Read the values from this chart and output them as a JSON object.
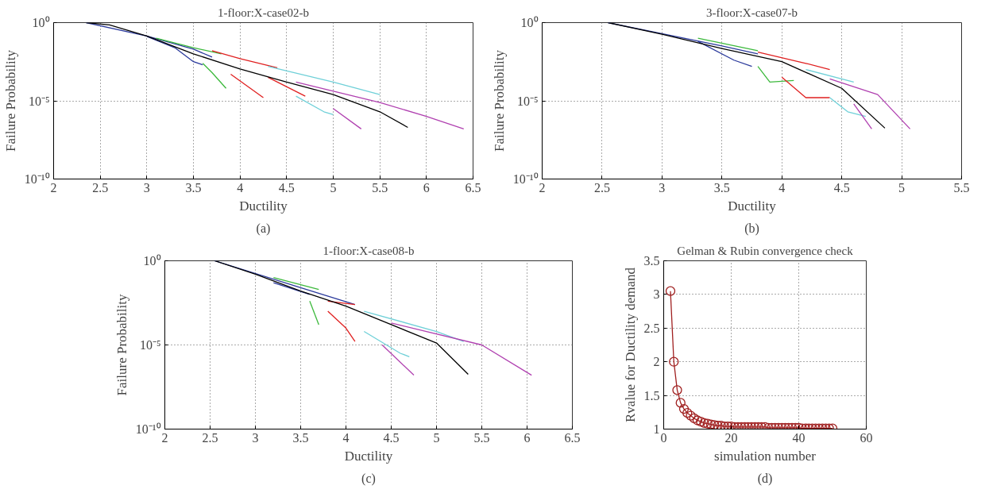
{
  "chart_data": [
    {
      "type": "line",
      "title": "1-floor:X-case02-b",
      "xlabel": "Ductility",
      "ylabel": "Failure Probability",
      "annotations": [
        "(a)"
      ],
      "log": "y",
      "grid": true,
      "xlim": [
        2,
        6.5
      ],
      "xticks": [
        2,
        2.5,
        3,
        3.5,
        4,
        4.5,
        5,
        5.5,
        6,
        6.5
      ],
      "ylim": [
        1e-10,
        1
      ],
      "yticks": [
        {
          "value": 1e-10,
          "label": "10⁻¹⁰"
        },
        {
          "value": 1e-05,
          "label": "10⁻⁵"
        },
        {
          "value": 1,
          "label": "10⁰"
        }
      ],
      "series": [
        {
          "color": "#2b3a9c",
          "x": [
            2.35,
            3.0,
            3.5,
            3.7
          ],
          "values": [
            1,
            0.14,
            0.02,
            0.0063
          ]
        },
        {
          "color": "#2b3a9c",
          "x": [
            3.0,
            3.3,
            3.5,
            3.6
          ],
          "values": [
            0.13,
            0.025,
            0.0032,
            0.002
          ]
        },
        {
          "color": "#3cb93c",
          "x": [
            3.1,
            3.5,
            3.8
          ],
          "values": [
            0.1,
            0.025,
            0.01
          ]
        },
        {
          "color": "#3cb93c",
          "x": [
            3.6,
            3.7,
            3.85
          ],
          "values": [
            0.0025,
            0.00063,
            6.3e-05
          ]
        },
        {
          "color": "#e02020",
          "x": [
            3.7,
            4.0,
            4.4
          ],
          "values": [
            0.016,
            0.005,
            0.0013
          ]
        },
        {
          "color": "#e02020",
          "x": [
            3.9,
            4.25
          ],
          "values": [
            0.0005,
            1.6e-05
          ]
        },
        {
          "color": "#e02020",
          "x": [
            4.3,
            4.7
          ],
          "values": [
            0.00032,
            2e-05
          ]
        },
        {
          "color": "#6fd0d8",
          "x": [
            4.3,
            5.0,
            5.5
          ],
          "values": [
            0.0016,
            0.00016,
            2.5e-05
          ]
        },
        {
          "color": "#6fd0d8",
          "x": [
            4.6,
            4.9,
            5.0
          ],
          "values": [
            2e-05,
            2e-06,
            1.3e-06
          ]
        },
        {
          "color": "#b040b0",
          "x": [
            4.6,
            5.5,
            6.0,
            6.4
          ],
          "values": [
            0.00016,
            7.9e-06,
            1e-06,
            1.6e-07
          ]
        },
        {
          "color": "#b040b0",
          "x": [
            5.0,
            5.3
          ],
          "values": [
            3.2e-06,
            1.6e-07
          ]
        },
        {
          "color": "#000000",
          "x": [
            2.35,
            2.6,
            3.0,
            3.5,
            4.0,
            4.5,
            5.0,
            5.5,
            5.8
          ],
          "values": [
            1,
            0.71,
            0.14,
            0.01,
            0.0011,
            0.00016,
            2.5e-05,
            2e-06,
            2e-07
          ]
        }
      ]
    },
    {
      "type": "line",
      "title": "3-floor:X-case07-b",
      "xlabel": "Ductility",
      "ylabel": "Failure Probability",
      "annotations": [
        "(b)"
      ],
      "log": "y",
      "grid": true,
      "xlim": [
        2,
        5.5
      ],
      "xticks": [
        2,
        2.5,
        3,
        3.5,
        4,
        4.5,
        5,
        5.5
      ],
      "ylim": [
        1e-10,
        1
      ],
      "yticks": [
        {
          "value": 1e-10,
          "label": "10⁻¹⁰"
        },
        {
          "value": 1e-05,
          "label": "10⁻⁵"
        },
        {
          "value": 1,
          "label": "10⁰"
        }
      ],
      "series": [
        {
          "color": "#2b3a9c",
          "x": [
            2.55,
            3.5,
            3.8
          ],
          "values": [
            1,
            0.032,
            0.01
          ]
        },
        {
          "color": "#2b3a9c",
          "x": [
            3.3,
            3.6,
            3.75
          ],
          "values": [
            0.063,
            0.004,
            0.0016
          ]
        },
        {
          "color": "#3cb93c",
          "x": [
            3.3,
            3.8
          ],
          "values": [
            0.1,
            0.016
          ]
        },
        {
          "color": "#3cb93c",
          "x": [
            3.8,
            3.9,
            4.1
          ],
          "values": [
            0.0016,
            0.00016,
            0.0002
          ]
        },
        {
          "color": "#e02020",
          "x": [
            3.8,
            4.2,
            4.4
          ],
          "values": [
            0.013,
            0.0025,
            0.001
          ]
        },
        {
          "color": "#e02020",
          "x": [
            4.0,
            4.2,
            4.4
          ],
          "values": [
            0.00032,
            1.6e-05,
            1.6e-05
          ]
        },
        {
          "color": "#6fd0d8",
          "x": [
            4.2,
            4.6
          ],
          "values": [
            0.001,
            0.00016
          ]
        },
        {
          "color": "#6fd0d8",
          "x": [
            4.4,
            4.55,
            4.7
          ],
          "values": [
            1.6e-05,
            2e-06,
            1e-06
          ]
        },
        {
          "color": "#b040b0",
          "x": [
            4.4,
            4.8,
            5.07
          ],
          "values": [
            0.00025,
            2.5e-05,
            1.6e-07
          ]
        },
        {
          "color": "#b040b0",
          "x": [
            4.6,
            4.75
          ],
          "values": [
            6.3e-06,
            1.6e-07
          ]
        },
        {
          "color": "#000000",
          "x": [
            2.55,
            3.0,
            3.5,
            4.0,
            4.5,
            4.86
          ],
          "values": [
            1,
            0.18,
            0.022,
            0.0032,
            6.3e-05,
            1.8e-07
          ]
        }
      ]
    },
    {
      "type": "line",
      "title": "1-floor:X-case08-b",
      "xlabel": "Ductility",
      "ylabel": "Failure Probability",
      "annotations": [
        "(c)"
      ],
      "log": "y",
      "grid": true,
      "xlim": [
        2,
        6.5
      ],
      "xticks": [
        2,
        2.5,
        3,
        3.5,
        4,
        4.5,
        5,
        5.5,
        6,
        6.5
      ],
      "ylim": [
        1e-10,
        1
      ],
      "yticks": [
        {
          "value": 1e-10,
          "label": "10⁻¹⁰"
        },
        {
          "value": 1e-05,
          "label": "10⁻⁵"
        },
        {
          "value": 1,
          "label": "10⁰"
        }
      ],
      "series": [
        {
          "color": "#2b3a9c",
          "x": [
            2.55,
            3.5,
            4.1
          ],
          "values": [
            1,
            0.025,
            0.0025
          ]
        },
        {
          "color": "#2b3a9c",
          "x": [
            3.2,
            3.6
          ],
          "values": [
            0.05,
            0.01
          ]
        },
        {
          "color": "#3cb93c",
          "x": [
            3.2,
            3.7
          ],
          "values": [
            0.1,
            0.02
          ]
        },
        {
          "color": "#3cb93c",
          "x": [
            3.6,
            3.7
          ],
          "values": [
            0.004,
            0.00016
          ]
        },
        {
          "color": "#e02020",
          "x": [
            3.8,
            4.1
          ],
          "values": [
            0.004,
            0.0025
          ]
        },
        {
          "color": "#e02020",
          "x": [
            3.8,
            4.0,
            4.1
          ],
          "values": [
            0.001,
            0.0001,
            1.6e-05
          ]
        },
        {
          "color": "#6fd0d8",
          "x": [
            4.2,
            5.0,
            5.3
          ],
          "values": [
            0.001,
            6.3e-05,
            1.6e-05
          ]
        },
        {
          "color": "#6fd0d8",
          "x": [
            4.2,
            4.6,
            4.7
          ],
          "values": [
            6.3e-05,
            3.2e-06,
            2e-06
          ]
        },
        {
          "color": "#b040b0",
          "x": [
            4.5,
            5.5,
            6.05
          ],
          "values": [
            0.0002,
            1e-05,
            1.6e-07
          ]
        },
        {
          "color": "#b040b0",
          "x": [
            4.4,
            4.75
          ],
          "values": [
            1e-05,
            1.6e-07
          ]
        },
        {
          "color": "#000000",
          "x": [
            2.55,
            3.0,
            3.5,
            4.0,
            4.5,
            5.0,
            5.35
          ],
          "values": [
            1,
            0.16,
            0.016,
            0.002,
            0.00016,
            1.3e-05,
            1.8e-07
          ]
        }
      ]
    },
    {
      "type": "line",
      "title": "Gelman & Rubin convergence check",
      "xlabel": "simulation number",
      "ylabel": "Rvalue for Ductility demand",
      "annotations": [
        "(d)"
      ],
      "grid": true,
      "marker": "circle",
      "xlim": [
        0,
        60
      ],
      "xticks": [
        0,
        20,
        40,
        60
      ],
      "ylim": [
        1,
        3.5
      ],
      "yticks": [
        1,
        1.5,
        2,
        2.5,
        3,
        3.5
      ],
      "series": [
        {
          "color": "#a02020",
          "x": [
            2,
            3,
            4,
            5,
            6,
            7,
            8,
            9,
            10,
            11,
            12,
            13,
            14,
            15,
            16,
            17,
            18,
            19,
            20,
            21,
            22,
            23,
            24,
            25,
            26,
            27,
            28,
            29,
            30,
            31,
            32,
            33,
            34,
            35,
            36,
            37,
            38,
            39,
            40,
            41,
            42,
            43,
            44,
            45,
            46,
            47,
            48,
            49,
            50
          ],
          "values": [
            3.05,
            2.0,
            1.58,
            1.39,
            1.3,
            1.24,
            1.2,
            1.16,
            1.13,
            1.11,
            1.09,
            1.08,
            1.07,
            1.06,
            1.05,
            1.05,
            1.04,
            1.04,
            1.04,
            1.03,
            1.03,
            1.03,
            1.03,
            1.03,
            1.03,
            1.03,
            1.03,
            1.03,
            1.03,
            1.02,
            1.02,
            1.02,
            1.02,
            1.02,
            1.02,
            1.02,
            1.02,
            1.02,
            1.02,
            1.01,
            1.01,
            1.01,
            1.01,
            1.01,
            1.01,
            1.01,
            1.01,
            1.01,
            1.01
          ]
        }
      ]
    }
  ]
}
